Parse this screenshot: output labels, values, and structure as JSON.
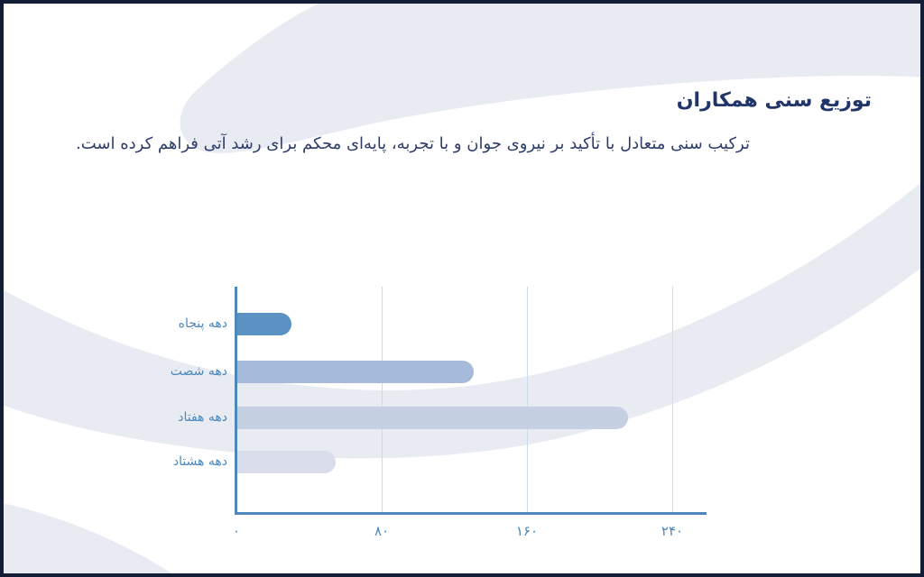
{
  "slide": {
    "title": "توزیع سنی همکاران",
    "subtitle": "ترکیب سنی متعادل با تأکید بر نیروی جوان و با تجربه، پایه‌ای محکم برای رشد آتی فراهم کرده است.",
    "title_color": "#21356b",
    "subtitle_color": "#2e3c6b",
    "frame_color": "#141d36",
    "swoosh_color": "#e9ebf3"
  },
  "chart_data": {
    "type": "bar",
    "orientation": "horizontal",
    "title": "",
    "xlabel": "",
    "ylabel": "",
    "categories": [
      "دهه پنجاه",
      "دهه شصت",
      "دهه هفتاد",
      "دهه هشتاد"
    ],
    "values": [
      30,
      130,
      215,
      54
    ],
    "xlim": [
      0,
      240
    ],
    "x_tick_values": [
      0,
      80,
      160,
      240
    ],
    "x_tick_labels": [
      "۰",
      "۸۰",
      "۱۶۰",
      "۲۴۰"
    ],
    "grid": true,
    "legend": false,
    "bar_colors": [
      "#5b92c4",
      "#a6bad9",
      "#c6d0e3",
      "#d9ddeb"
    ],
    "label_color": "#4d88bb",
    "tick_color": "#4d88bb",
    "axis_color": "#4e88ba",
    "gridline_color": "#ccdbe9"
  }
}
